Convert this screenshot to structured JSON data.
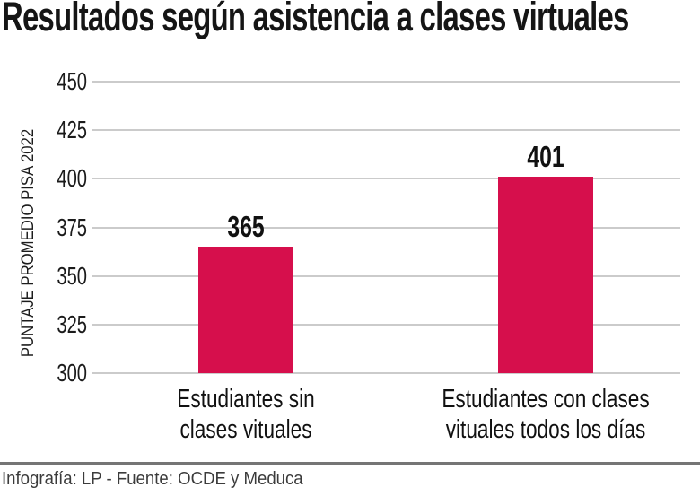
{
  "title": "Resultados según asistencia a clases virtuales",
  "footer": {
    "credit": "Infografía: LP - Fuente: OCDE y Meduca"
  },
  "colors": {
    "bar": "#D60F4C",
    "gridline": "#cbcbcb",
    "title_text": "#151515",
    "footer_rule": "#757575",
    "footer_text": "#3b3b3b"
  },
  "chart_data": {
    "type": "bar",
    "title": "Resultados según asistencia a clases virtuales",
    "categories": [
      "Estudiantes sin\nclases vituales",
      "Estudiantes con clases\nvituales todos los días"
    ],
    "values": [
      365,
      401
    ],
    "value_labels": [
      "365",
      "401"
    ],
    "xlabel": "",
    "ylabel": "PUNTAJE PROMEDIO PISA 2022",
    "ylim": [
      300,
      450
    ],
    "yticks": [
      300,
      325,
      350,
      375,
      400,
      425,
      450
    ],
    "grid": true,
    "legend": "none",
    "source": "Infografía: LP - Fuente: OCDE y Meduca"
  }
}
